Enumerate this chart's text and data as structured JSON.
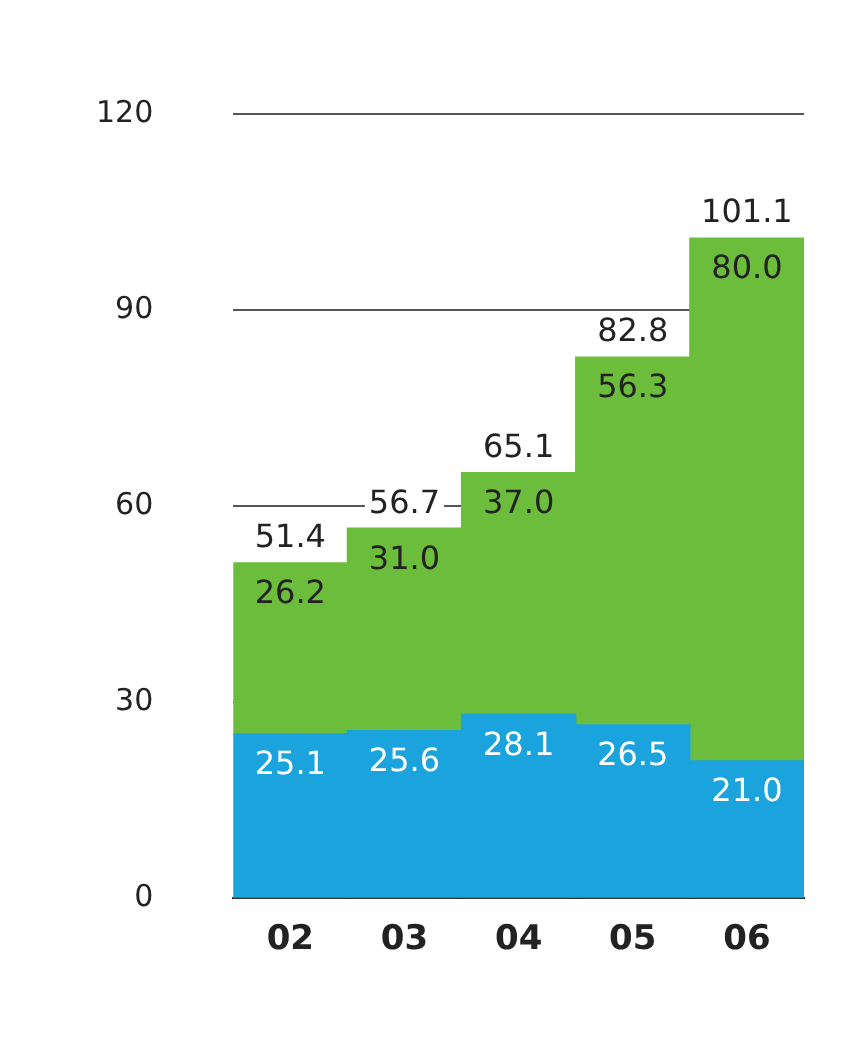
{
  "chart_data": {
    "type": "bar",
    "stacked": true,
    "categories": [
      "02",
      "03",
      "04",
      "05",
      "06"
    ],
    "series": [
      {
        "color": "#1aa3dc",
        "values": [
          25.1,
          25.6,
          28.1,
          26.5,
          21.0
        ],
        "value_labels": [
          "25.1",
          "25.6",
          "28.1",
          "26.5",
          "21.0"
        ]
      },
      {
        "color": "#6cbd3c",
        "values": [
          26.2,
          31.0,
          37.0,
          56.3,
          80.0
        ],
        "value_labels": [
          "26.2",
          "31.0",
          "37.0",
          "56.3",
          "80.0"
        ]
      }
    ],
    "totals": [
      "51.4",
      "56.7",
      "65.1",
      "82.8",
      "101.1"
    ],
    "ylim": [
      0,
      120
    ],
    "yticks": [
      0,
      30,
      60,
      90,
      120
    ],
    "grid": "y",
    "legend": false
  }
}
